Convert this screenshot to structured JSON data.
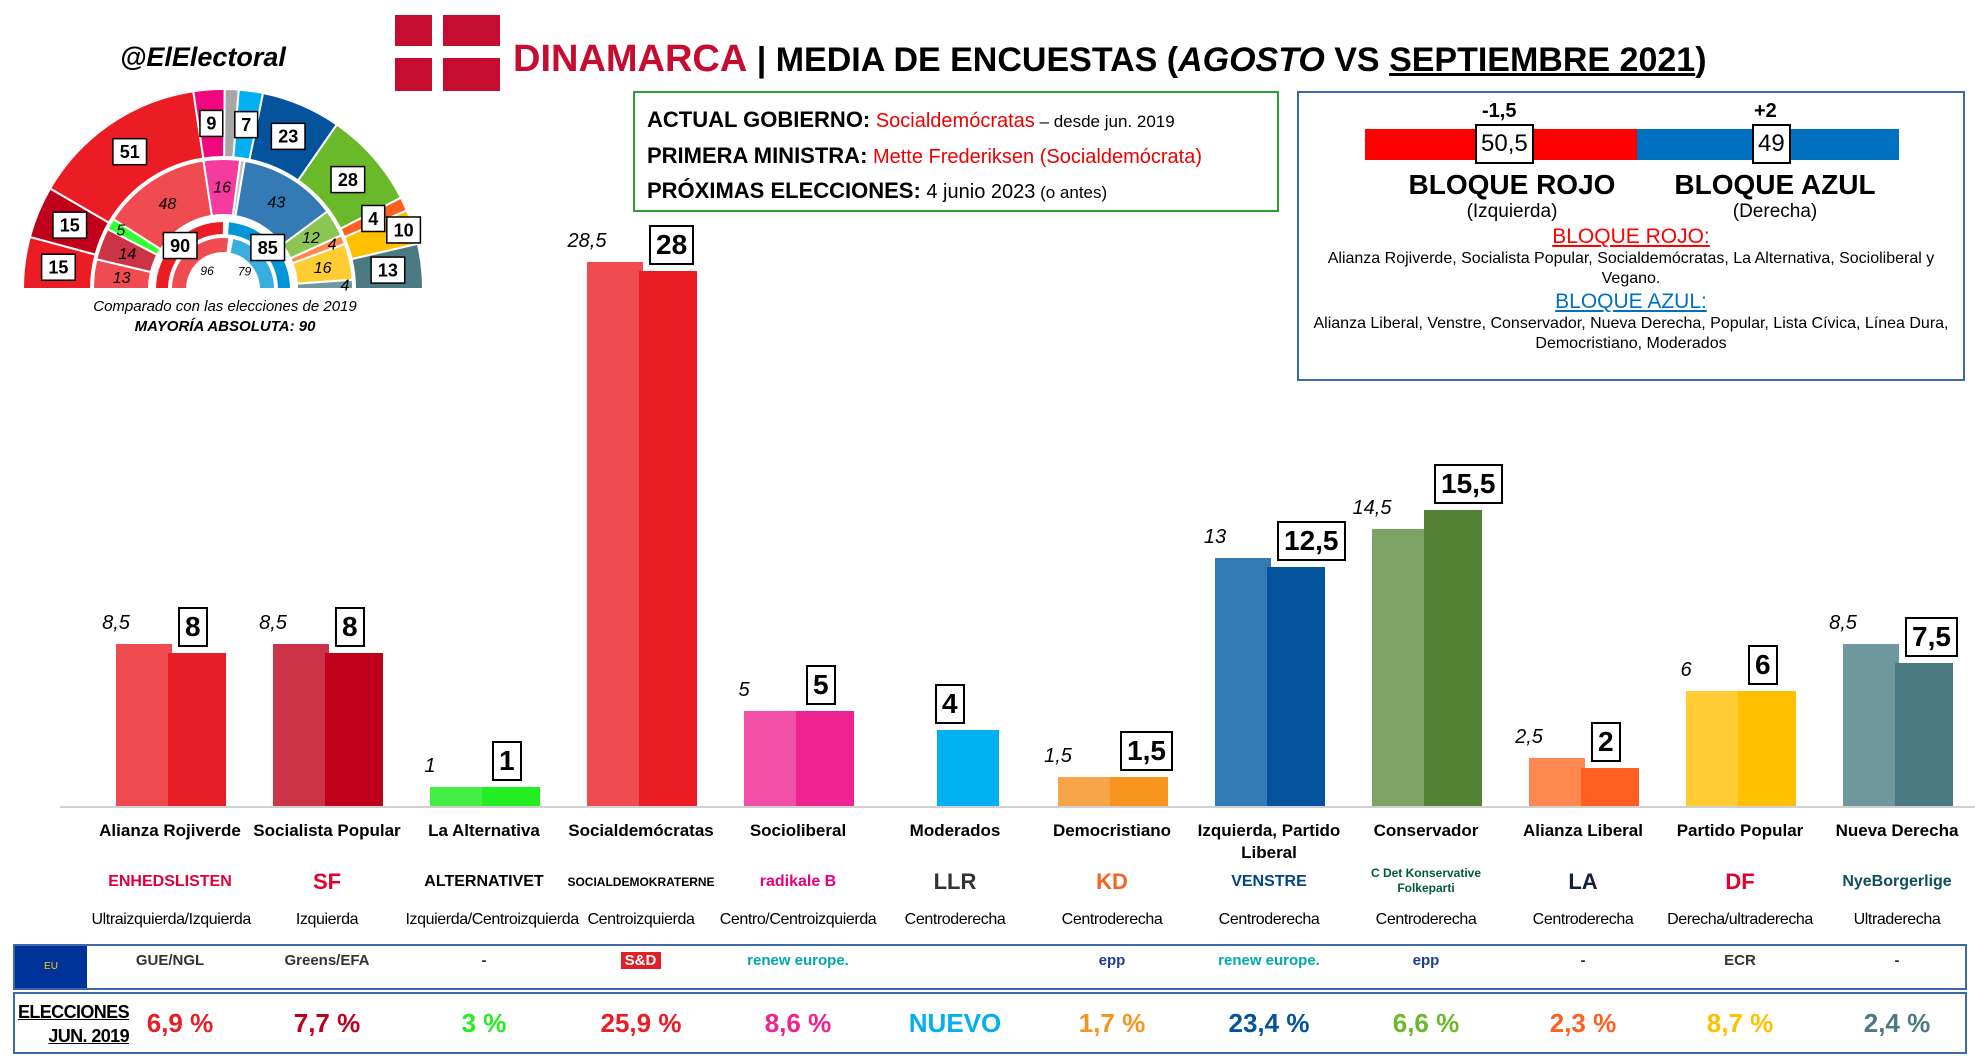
{
  "header": {
    "handle": "@ElElectoral",
    "country": "DINAMARCA",
    "title_pre": " | MEDIA DE ENCUESTAS (",
    "title_month": "AGOSTO",
    "title_vs": " VS ",
    "title_sep": "SEPTIEMBRE 2021",
    ")": ")",
    "title_end": ")",
    "flag_colors": {
      "red": "#c60c30",
      "white": "#ffffff"
    }
  },
  "government": {
    "l1": "ACTUAL GOBIERNO:",
    "v1": "Socialdemócratas",
    "v1b": " – desde jun. 2019",
    "l2": "PRIMERA MINISTRA:",
    "v2": "Mette Frederiksen (Socialdemócrata)",
    "l3": "PRÓXIMAS ELECCIONES:",
    "v3": "4 junio 2023",
    "v3b": " (o antes)"
  },
  "blocs": {
    "red": {
      "value": "50,5",
      "change": "-1,5",
      "name": "BLOQUE ROJO",
      "sub": "(Izquierda)",
      "color": "#ff0000",
      "heading": "BLOQUE ROJO:",
      "members": "Alianza Rojiverde, Socialista Popular, Socialdemócratas, La Alternativa, Socioliberal y Vegano."
    },
    "blue": {
      "value": "49",
      "change": "+2",
      "name": "BLOQUE AZUL",
      "sub": "(Derecha)",
      "color": "#0070c0",
      "heading": "BLOQUE AZUL:",
      "members": "Alianza Liberal, Venstre, Conservador, Nueva Derecha, Popular, Lista Cívica, Línea Dura, Democristiano, Moderados"
    }
  },
  "hemicycle": {
    "caption": "Comparado con las elecciones de 2019",
    "majority": "MAYORÍA ABSOLUTA: 90",
    "current": [
      {
        "v": 15,
        "c": "#ec1c24",
        "label": "15"
      },
      {
        "v": 15,
        "c": "#c0001b",
        "label": "15"
      },
      {
        "v": 51,
        "c": "#ec1c24",
        "label": "51"
      },
      {
        "v": 9,
        "c": "#f0077f",
        "label": "9"
      },
      {
        "v": 4,
        "c": "#a6a6a6",
        "label": ""
      },
      {
        "v": 7,
        "c": "#00b0f0",
        "label": "7"
      },
      {
        "v": 23,
        "c": "#04539c",
        "label": "23"
      },
      {
        "v": 28,
        "c": "#6ab92a",
        "label": "28"
      },
      {
        "v": 4,
        "c": "#ff6022",
        "label": "4"
      },
      {
        "v": 10,
        "c": "#ffc000",
        "label": "10"
      },
      {
        "v": 13,
        "c": "#4b7a82",
        "label": "13"
      }
    ],
    "previous": [
      {
        "v": 13,
        "c": "#ef4b51",
        "label": "13"
      },
      {
        "v": 14,
        "c": "#cc3346",
        "label": "14"
      },
      {
        "v": 5,
        "c": "#33ff33",
        "label": "5"
      },
      {
        "v": 48,
        "c": "#ef4b51",
        "label": "48"
      },
      {
        "v": 16,
        "c": "#f53b9d",
        "label": "16"
      },
      {
        "v": 2,
        "c": "#bfbfbf",
        "label": ""
      },
      {
        "v": 43,
        "c": "#347bb5",
        "label": "43"
      },
      {
        "v": 12,
        "c": "#8bc652",
        "label": "12"
      },
      {
        "v": 4,
        "c": "#ff8850",
        "label": "4"
      },
      {
        "v": 16,
        "c": "#ffcd33",
        "label": "16"
      },
      {
        "v": 4,
        "c": "#6f979e",
        "label": "4"
      }
    ],
    "bloc_current": [
      {
        "v": 90,
        "c": "#ec1c24",
        "label": "90"
      },
      {
        "v": 85,
        "c": "#0096d6",
        "label": "85"
      }
    ],
    "bloc_previous": [
      {
        "v": 96,
        "c": "#ef4b51",
        "label": "96"
      },
      {
        "v": 79,
        "c": "#38ade0",
        "label": "79"
      }
    ]
  },
  "chart_data": {
    "type": "bar",
    "series": [
      {
        "name": "AGOSTO"
      },
      {
        "name": "SEPTIEMBRE 2021"
      }
    ],
    "parties": [
      {
        "name": "Alianza Rojiverde",
        "old": 8.5,
        "oldl": "8,5",
        "new": 8,
        "newl": "8",
        "oc": "#ee4a50",
        "nc": "#e61f26",
        "logo": "ENHEDSLISTEN",
        "logo_c": "#e2003a",
        "ideo": "Ultraizquierda/Izquierda",
        "eu": "GUE/NGL",
        "res": "6,9 %",
        "rc": "#e61f26"
      },
      {
        "name": "Socialista Popular",
        "old": 8.5,
        "oldl": "8,5",
        "new": 8,
        "newl": "8",
        "oc": "#cc3346",
        "nc": "#c0001b",
        "logo": "SF",
        "logo_c": "#e4002b",
        "ideo": "Izquierda",
        "eu": "Greens/EFA",
        "res": "7,7 %",
        "rc": "#c0001b"
      },
      {
        "name": "La Alternativa",
        "old": 1,
        "oldl": "1",
        "new": 1,
        "newl": "1",
        "oc": "#44ee44",
        "nc": "#22ee22",
        "logo": "ALTERNATIVET",
        "logo_c": "#000000",
        "ideo": "Izquierda/Centroizquierda",
        "eu": "-",
        "res": "3 %",
        "rc": "#22ee22"
      },
      {
        "name": "Socialdemócratas",
        "old": 28.5,
        "oldl": "28,5",
        "new": 28,
        "newl": "28",
        "oc": "#ef4b51",
        "nc": "#ec1c24",
        "logo": "SOCIALDEMOKRATERNE",
        "logo_c": "#000000",
        "ideo": "Centroizquierda",
        "eu": "S&D",
        "res": "25,9 %",
        "rc": "#ec1c24"
      },
      {
        "name": "Socioliberal",
        "old": 5,
        "oldl": "5",
        "new": 5,
        "newl": "5",
        "oc": "#f250a8",
        "nc": "#ee2290",
        "logo": "radikale B",
        "logo_c": "#e6007e",
        "ideo": "Centro/Centroizquierda",
        "eu": "renew europe.",
        "res": "8,6 %",
        "rc": "#ee2290"
      },
      {
        "name": "Moderados",
        "old": null,
        "oldl": "",
        "new": 4,
        "newl": "4",
        "oc": "#00b0f0",
        "nc": "#00b0f0",
        "logo": "LLR",
        "logo_c": "#333333",
        "ideo": "Centroderecha",
        "eu": "",
        "res": "NUEVO",
        "rc": "#00b0f0"
      },
      {
        "name": "Democristiano",
        "old": 1.5,
        "oldl": "1,5",
        "new": 1.5,
        "newl": "1,5",
        "oc": "#f8a54a",
        "nc": "#f7941e",
        "logo": "KD",
        "logo_c": "#f26522",
        "ideo": "Centroderecha",
        "eu": "epp",
        "res": "1,7 %",
        "rc": "#f7941e"
      },
      {
        "name": "Izquierda, Partido Liberal",
        "old": 13,
        "oldl": "13",
        "new": 12.5,
        "newl": "12,5",
        "oc": "#347bb5",
        "nc": "#04539c",
        "logo": "VENSTRE",
        "logo_c": "#004588",
        "ideo": "Centroderecha",
        "eu": "renew europe.",
        "res": "23,4 %",
        "rc": "#04539c"
      },
      {
        "name": "Conservador",
        "old": 14.5,
        "oldl": "14,5",
        "new": 15.5,
        "newl": "15,5",
        "oc": "#7fa364",
        "nc": "#538234",
        "logo": "C Det Konservative Folkeparti",
        "logo_c": "#00583c",
        "ideo": "Centroderecha",
        "eu": "epp",
        "res": "6,6 %",
        "rc": "#6ab92a"
      },
      {
        "name": "Alianza Liberal",
        "old": 2.5,
        "oldl": "2,5",
        "new": 2,
        "newl": "2",
        "oc": "#ff8850",
        "nc": "#ff6022",
        "logo": "LA",
        "logo_c": "#12213f",
        "ideo": "Centroderecha",
        "eu": "-",
        "res": "2,3 %",
        "rc": "#ff6022"
      },
      {
        "name": "Partido Popular",
        "old": 6,
        "oldl": "6",
        "new": 6,
        "newl": "6",
        "oc": "#ffcd33",
        "nc": "#ffc000",
        "logo": "DF",
        "logo_c": "#e4002b",
        "ideo": "Derecha/ultraderecha",
        "eu": "ECR",
        "res": "8,7 %",
        "rc": "#ffc000"
      },
      {
        "name": "Nueva Derecha",
        "old": 8.5,
        "oldl": "8,5",
        "new": 7.5,
        "newl": "7,5",
        "oc": "#6f979e",
        "nc": "#4b7a82",
        "logo": "NyeBorgerlige",
        "logo_c": "#0f4f5a",
        "ideo": "Ultraderecha",
        "eu": "-",
        "res": "2,4 %",
        "rc": "#4b7a82"
      }
    ],
    "ylim": [
      0,
      30
    ]
  },
  "footer": {
    "eu_flag": "EU",
    "elections_l1": "ELECCIONES",
    "elections_l2": "JUN. 2019"
  }
}
